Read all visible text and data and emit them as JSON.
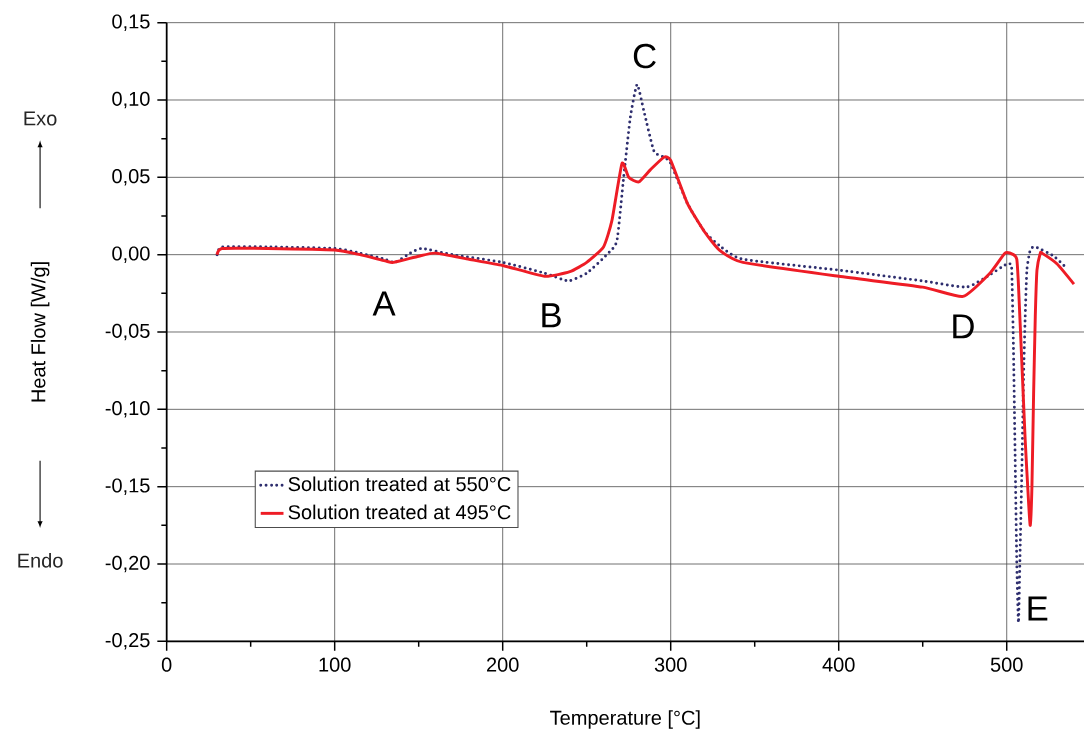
{
  "chart_data": {
    "type": "line",
    "xlabel": "Temperature [°C]",
    "ylabel": "Heat Flow [W/g]",
    "xlim": [
      0,
      546
    ],
    "ylim": [
      -0.25,
      0.15
    ],
    "xticks": [
      0,
      {
        "value": 50,
        "label": null
      },
      100,
      {
        "value": 150,
        "label": null
      },
      200,
      {
        "value": 250,
        "label": null
      },
      300,
      {
        "value": 350,
        "label": null
      },
      400,
      {
        "value": 450,
        "label": null
      },
      500
    ],
    "yticks": [
      {
        "value": -0.25,
        "label": "-0,25"
      },
      {
        "value": -0.225,
        "label": null
      },
      {
        "value": -0.2,
        "label": "-0,20"
      },
      {
        "value": -0.175,
        "label": null
      },
      {
        "value": -0.15,
        "label": "-0,15"
      },
      {
        "value": -0.125,
        "label": null
      },
      {
        "value": -0.1,
        "label": "-0,10"
      },
      {
        "value": -0.075,
        "label": null
      },
      {
        "value": -0.05,
        "label": "-0,05"
      },
      {
        "value": -0.025,
        "label": null
      },
      {
        "value": 0,
        "label": "0,00"
      },
      {
        "value": 0.025,
        "label": null
      },
      {
        "value": 0.05,
        "label": "0,05"
      },
      {
        "value": 0.075,
        "label": null
      },
      {
        "value": 0.1,
        "label": "0,10"
      },
      {
        "value": 0.125,
        "label": null
      },
      {
        "value": 0.15,
        "label": "0,15"
      }
    ],
    "grid": true,
    "legend": "bottom left",
    "marker": "none",
    "annotations": [
      "A",
      "B",
      "C",
      "D",
      "E",
      "Exo",
      "Endo"
    ],
    "series": [
      {
        "name": "Solution treated at 550°C",
        "color": "#2e2e6e",
        "line_style": "dotted",
        "x": [
          30,
          33,
          60,
          100,
          115,
          130,
          136,
          145,
          152,
          170,
          200,
          225,
          239,
          250,
          262,
          268,
          272,
          276,
          280,
          284,
          290,
          296,
          300,
          310,
          320,
          330,
          343,
          400,
          450,
          476,
          490,
          500,
          502,
          503,
          504,
          505,
          506,
          507,
          508,
          509,
          510,
          511,
          512,
          514,
          517,
          528,
          535
        ],
        "values": [
          0.0,
          0.005,
          0.005,
          0.004,
          0.001,
          -0.003,
          -0.005,
          0.001,
          0.004,
          0.0,
          -0.005,
          -0.012,
          -0.017,
          -0.012,
          0.0,
          0.009,
          0.05,
          0.089,
          0.11,
          0.093,
          0.067,
          0.063,
          0.059,
          0.033,
          0.015,
          0.005,
          -0.003,
          -0.01,
          -0.017,
          -0.021,
          -0.013,
          -0.006,
          -0.006,
          -0.01,
          -0.06,
          -0.13,
          -0.2,
          -0.238,
          -0.19,
          -0.14,
          -0.08,
          -0.04,
          -0.01,
          0.003,
          0.005,
          -0.001,
          -0.008
        ]
      },
      {
        "name": "Solution treated at 495°C",
        "color": "#ee1c25",
        "line_style": "solid",
        "x": [
          30,
          33,
          60,
          100,
          115,
          130,
          135,
          150,
          160,
          180,
          200,
          225,
          240,
          250,
          260,
          265,
          271,
          275,
          281,
          288,
          296,
          300,
          310,
          320,
          329,
          343,
          400,
          450,
          474,
          490,
          499,
          504,
          506,
          507,
          509,
          511,
          513,
          514,
          515,
          516,
          517,
          518,
          520,
          521,
          530,
          540
        ],
        "values": [
          0.0,
          0.004,
          0.004,
          0.003,
          0.0,
          -0.004,
          -0.005,
          -0.001,
          0.001,
          -0.003,
          -0.007,
          -0.014,
          -0.011,
          -0.005,
          0.005,
          0.022,
          0.059,
          0.05,
          0.047,
          0.055,
          0.063,
          0.061,
          0.033,
          0.015,
          0.003,
          -0.005,
          -0.014,
          -0.021,
          -0.027,
          -0.012,
          0.001,
          0.0,
          -0.003,
          -0.02,
          -0.07,
          -0.12,
          -0.16,
          -0.175,
          -0.15,
          -0.09,
          -0.04,
          -0.01,
          0.001,
          0.001,
          -0.006,
          -0.019
        ]
      }
    ]
  }
}
